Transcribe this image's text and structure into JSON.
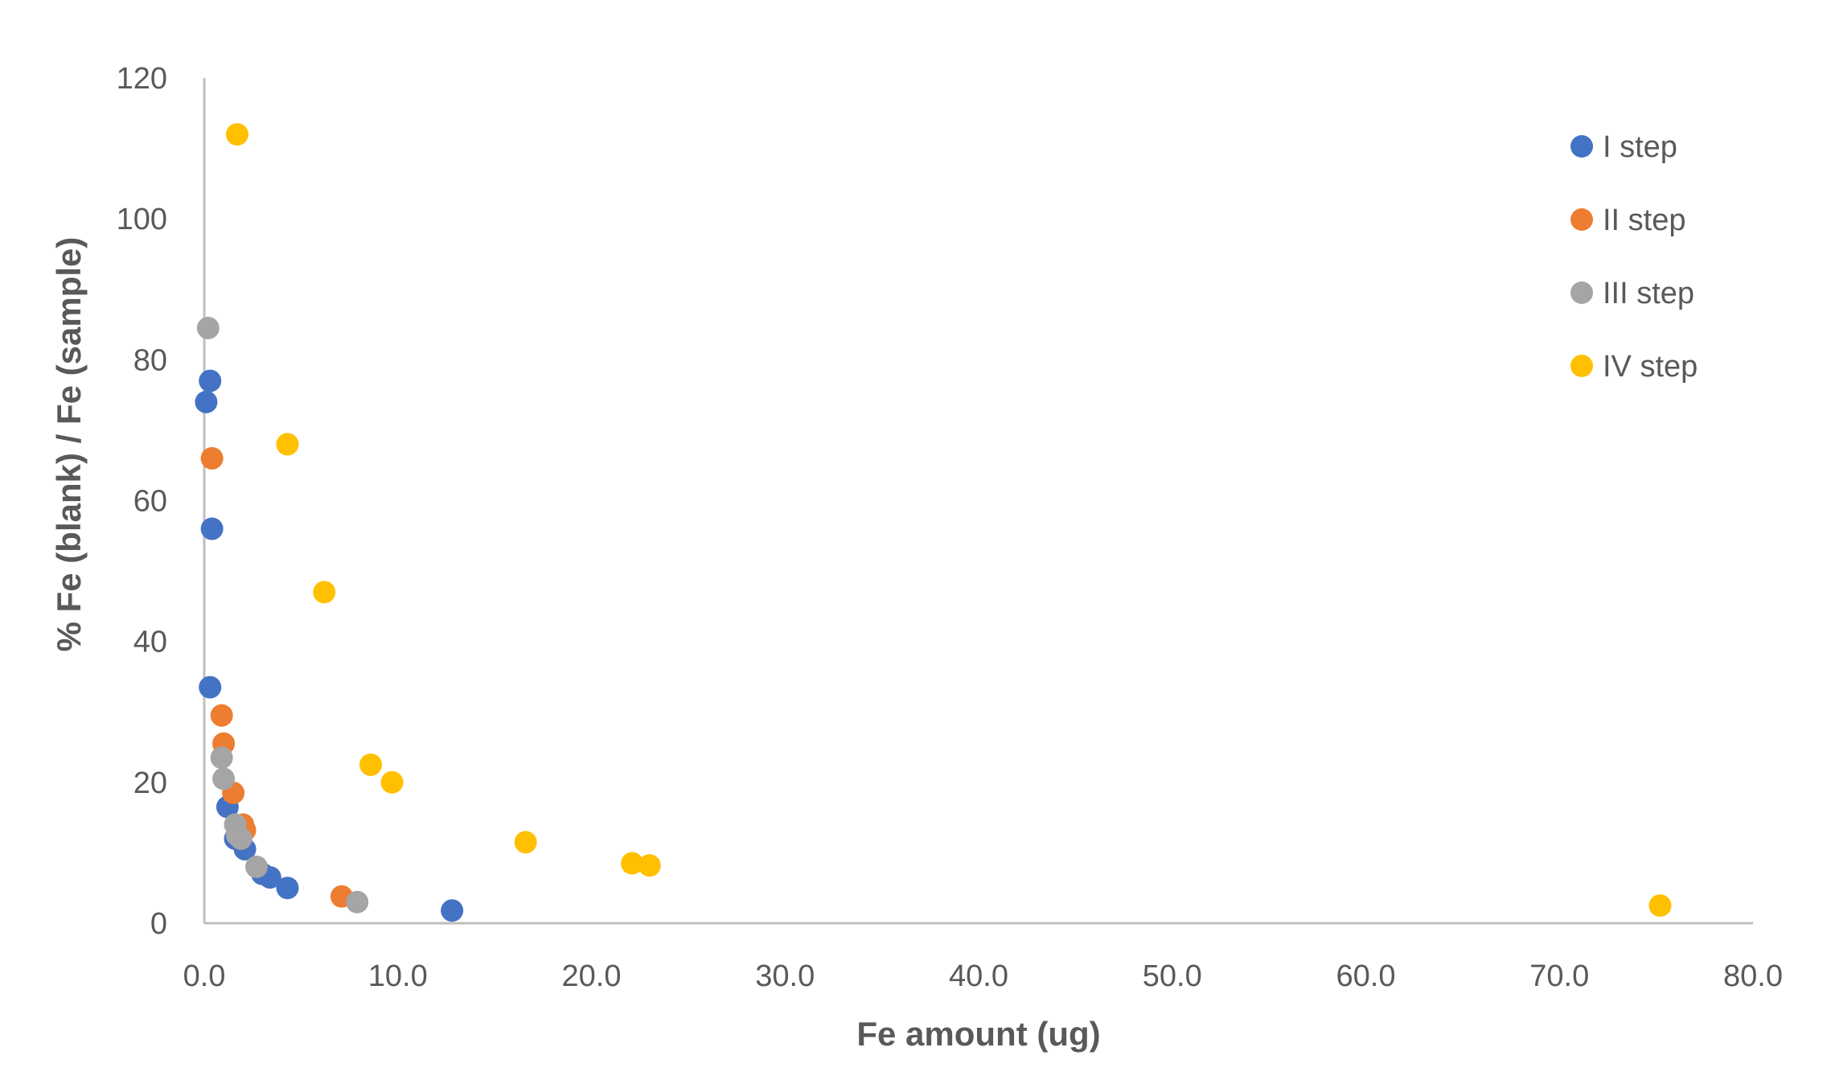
{
  "chart_data": {
    "type": "scatter",
    "title": "",
    "xlabel": "Fe amount (ug)",
    "ylabel": "% Fe (blank) / Fe (sample)",
    "xlim": [
      0,
      80
    ],
    "ylim": [
      0,
      120
    ],
    "x_ticks": [
      "0.0",
      "10.0",
      "20.0",
      "30.0",
      "40.0",
      "50.0",
      "60.0",
      "70.0",
      "80.0"
    ],
    "y_ticks": [
      "0",
      "20",
      "40",
      "60",
      "80",
      "100",
      "120"
    ],
    "grid": false,
    "legend_position": "top-right",
    "series": [
      {
        "name": "I step",
        "color": "#4472C4",
        "points": [
          [
            0.1,
            74
          ],
          [
            0.3,
            77
          ],
          [
            0.4,
            56
          ],
          [
            0.3,
            33.5
          ],
          [
            1.2,
            16.5
          ],
          [
            1.6,
            12
          ],
          [
            2.1,
            10.5
          ],
          [
            3.0,
            7
          ],
          [
            3.4,
            6.5
          ],
          [
            4.3,
            5
          ],
          [
            12.8,
            1.8
          ]
        ]
      },
      {
        "name": "II step",
        "color": "#ED7D31",
        "points": [
          [
            0.4,
            66
          ],
          [
            0.9,
            29.5
          ],
          [
            1.0,
            25.5
          ],
          [
            1.5,
            18.5
          ],
          [
            2.0,
            14
          ],
          [
            2.1,
            13.2
          ],
          [
            7.1,
            3.8
          ]
        ]
      },
      {
        "name": "III step",
        "color": "#A5A5A5",
        "points": [
          [
            0.2,
            84.5
          ],
          [
            0.9,
            23.5
          ],
          [
            1.0,
            20.5
          ],
          [
            1.6,
            14
          ],
          [
            1.7,
            12.5
          ],
          [
            1.9,
            12
          ],
          [
            2.7,
            8
          ],
          [
            7.9,
            3
          ]
        ]
      },
      {
        "name": "IV step",
        "color": "#FFC000",
        "points": [
          [
            1.7,
            112
          ],
          [
            4.3,
            68
          ],
          [
            6.2,
            47
          ],
          [
            8.6,
            22.5
          ],
          [
            9.7,
            20
          ],
          [
            16.6,
            11.5
          ],
          [
            22.1,
            8.5
          ],
          [
            23.0,
            8.2
          ],
          [
            75.2,
            2.5
          ]
        ]
      }
    ]
  }
}
